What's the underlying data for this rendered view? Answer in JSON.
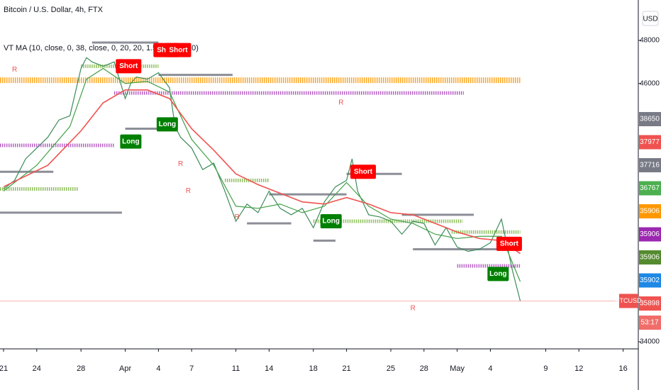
{
  "chart_data": {
    "type": "line",
    "title": "Bitcoin / U.S. Dollar, 4h, FTX",
    "subtitle": "VT MA (10, close, 0, 38, close, 0, 20, 20, 1.5, 50, 10, 10)",
    "y_axis_label": "USD",
    "xlim": [
      -0.32,
      57.37
    ],
    "ylim": [
      33672,
      49877
    ],
    "xticks": [
      {
        "value": 0,
        "label": "21"
      },
      {
        "value": 3,
        "label": "24"
      },
      {
        "value": 7,
        "label": "28"
      },
      {
        "value": 11,
        "label": "Apr"
      },
      {
        "value": 14,
        "label": "4"
      },
      {
        "value": 17,
        "label": "7"
      },
      {
        "value": 21,
        "label": "11"
      },
      {
        "value": 24,
        "label": "14"
      },
      {
        "value": 28,
        "label": "18"
      },
      {
        "value": 31,
        "label": "21"
      },
      {
        "value": 35,
        "label": "25"
      },
      {
        "value": 38,
        "label": "28"
      },
      {
        "value": 41,
        "label": "May"
      },
      {
        "value": 44,
        "label": "4"
      },
      {
        "value": 49,
        "label": "9"
      },
      {
        "value": 52,
        "label": "12"
      },
      {
        "value": 56,
        "label": "16"
      }
    ],
    "yticks": [
      34000,
      46000,
      48000
    ],
    "series": [
      {
        "color": "#3d8b5a",
        "x": [
          0,
          1,
          2,
          3,
          4,
          5,
          6,
          7,
          7.5,
          8,
          9,
          10,
          11,
          11.5,
          12,
          13,
          14,
          15,
          15.5,
          16,
          17,
          18,
          19,
          20,
          21,
          22,
          23,
          24,
          25,
          26,
          27,
          28,
          29,
          30,
          31,
          31.5,
          32,
          33,
          34,
          35,
          36,
          37,
          38,
          39,
          40,
          41,
          42,
          43,
          44,
          45,
          46,
          46.7
        ],
        "values": [
          41100,
          41500,
          42500,
          43000,
          43500,
          44300,
          44500,
          46700,
          47200,
          47000,
          46800,
          47000,
          45300,
          46000,
          46300,
          46200,
          46500,
          45800,
          44000,
          43500,
          43000,
          42000,
          42300,
          41000,
          39600,
          40400,
          40000,
          41000,
          40200,
          39900,
          40200,
          39300,
          40500,
          41200,
          41500,
          42500,
          41000,
          39900,
          39800,
          39600,
          39000,
          39600,
          39500,
          38500,
          39300,
          38400,
          38200,
          38300,
          38600,
          39700,
          37300,
          35900
        ]
      },
      {
        "color": "#43a047",
        "x": [
          0,
          3,
          6,
          7.5,
          9,
          11,
          13,
          15,
          17,
          19,
          21,
          23,
          25,
          27,
          29,
          31,
          33,
          35,
          37,
          39,
          41,
          43,
          45,
          46.7
        ],
        "values": [
          41000,
          42200,
          44000,
          46200,
          46700,
          46000,
          46100,
          45600,
          43400,
          42200,
          40300,
          40200,
          40400,
          40000,
          40300,
          41400,
          40300,
          39700,
          39500,
          39000,
          38800,
          38900,
          38900,
          36800
        ]
      },
      {
        "color": "#ef5350",
        "x": [
          0,
          4,
          7,
          9,
          11,
          13,
          15,
          17,
          19,
          21,
          23,
          25,
          27,
          29,
          31,
          33,
          35,
          37,
          39,
          41,
          43,
          45,
          46.7
        ],
        "values": [
          41200,
          42200,
          43800,
          45100,
          45700,
          45700,
          45300,
          43900,
          42900,
          41800,
          41300,
          40900,
          40500,
          40400,
          40700,
          40400,
          40000,
          39900,
          39500,
          39100,
          38800,
          38700,
          38100
        ]
      }
    ],
    "levels": [
      {
        "value": 46150,
        "x": [
          -0.32,
          46.7
        ],
        "color": "#ff9800"
      },
      {
        "value": 45560,
        "x": [
          10,
          41.6
        ],
        "color": "#ab47bc"
      },
      {
        "value": 43125,
        "x": [
          -0.32,
          10
        ],
        "color": "#ab47bc"
      },
      {
        "value": 37525,
        "x": [
          41,
          46.7
        ],
        "color": "#ab47bc"
      },
      {
        "value": 47900,
        "x": [
          8,
          14
        ],
        "color": "#787b86"
      },
      {
        "value": 46400,
        "x": [
          14,
          20.7
        ],
        "color": "#787b86"
      },
      {
        "value": 46800,
        "x": [
          7,
          14
        ],
        "color": "#7cb342"
      },
      {
        "value": 43900,
        "x": [
          11,
          15
        ],
        "color": "#787b86"
      },
      {
        "value": 40000,
        "x": [
          -0.32,
          10.7
        ],
        "color": "#787b86"
      },
      {
        "value": 41100,
        "x": [
          -0.32,
          6.7
        ],
        "color": "#7cb342"
      },
      {
        "value": 41900,
        "x": [
          -0.32,
          4.5
        ],
        "color": "#787b86"
      },
      {
        "value": 41500,
        "x": [
          20,
          24
        ],
        "color": "#7cb342"
      },
      {
        "value": 40850,
        "x": [
          24,
          31
        ],
        "color": "#787b86"
      },
      {
        "value": 41800,
        "x": [
          31,
          36
        ],
        "color": "#787b86"
      },
      {
        "value": 38700,
        "x": [
          28,
          30
        ],
        "color": "#787b86"
      },
      {
        "value": 39500,
        "x": [
          22,
          26
        ],
        "color": "#787b86"
      },
      {
        "value": 39600,
        "x": [
          28,
          41.5
        ],
        "color": "#7cb342"
      },
      {
        "value": 39900,
        "x": [
          36,
          42.5
        ],
        "color": "#787b86"
      },
      {
        "value": 38300,
        "x": [
          37,
          45
        ],
        "color": "#787b86"
      },
      {
        "value": 39100,
        "x": [
          40.5,
          46.7
        ],
        "color": "#7cb342"
      }
    ],
    "annotations": [
      {
        "text": "Short",
        "x": 11.3,
        "y": 46800,
        "color": "#ff0000"
      },
      {
        "text": "Short",
        "x": 14.7,
        "y": 47550,
        "color": "#ff0000"
      },
      {
        "text": "Short",
        "x": 15.8,
        "y": 47550,
        "color": "#ff0000"
      },
      {
        "text": "Short",
        "x": 32.5,
        "y": 41900,
        "color": "#ff0000"
      },
      {
        "text": "Short",
        "x": 45.7,
        "y": 38550,
        "color": "#ff0000"
      },
      {
        "text": "Long",
        "x": 11.5,
        "y": 43300,
        "color": "#008000"
      },
      {
        "text": "Long",
        "x": 14.8,
        "y": 44100,
        "color": "#008000"
      },
      {
        "text": "Long",
        "x": 29.6,
        "y": 39600,
        "color": "#008000"
      },
      {
        "text": "Long",
        "x": 44.7,
        "y": 37150,
        "color": "#008000"
      },
      {
        "text": "R",
        "x": 1,
        "y": 46640,
        "color": "#ef5350"
      },
      {
        "text": "R",
        "x": 16,
        "y": 42250,
        "color": "#ef5350"
      },
      {
        "text": "R",
        "x": 16.7,
        "y": 41000,
        "color": "#ef5350"
      },
      {
        "text": "R",
        "x": 21.1,
        "y": 39780,
        "color": "#ef5350"
      },
      {
        "text": "R",
        "x": 30.5,
        "y": 45100,
        "color": "#ef5350"
      },
      {
        "text": "R",
        "x": 37,
        "y": 35560,
        "color": "#ef5350"
      }
    ],
    "price_labels": [
      {
        "value": 38650,
        "color": "#787b86"
      },
      {
        "value": 37977,
        "color": "#ef5350"
      },
      {
        "value": 37716,
        "color": "#787b86"
      },
      {
        "value": 36767,
        "color": "#4caf50"
      },
      {
        "value": 35906,
        "color": "#ff9800"
      },
      {
        "value": 35906,
        "color": "#9c27b0"
      },
      {
        "value": 35906,
        "color": "#558b2f"
      },
      {
        "value": 35902,
        "color": "#1e88e5"
      },
      {
        "value": 35898,
        "color": "#ef5350"
      }
    ],
    "symbol_label": {
      "text": "BTCUSD",
      "value": 35898,
      "color": "#ef5350"
    },
    "countdown": "53:17"
  }
}
